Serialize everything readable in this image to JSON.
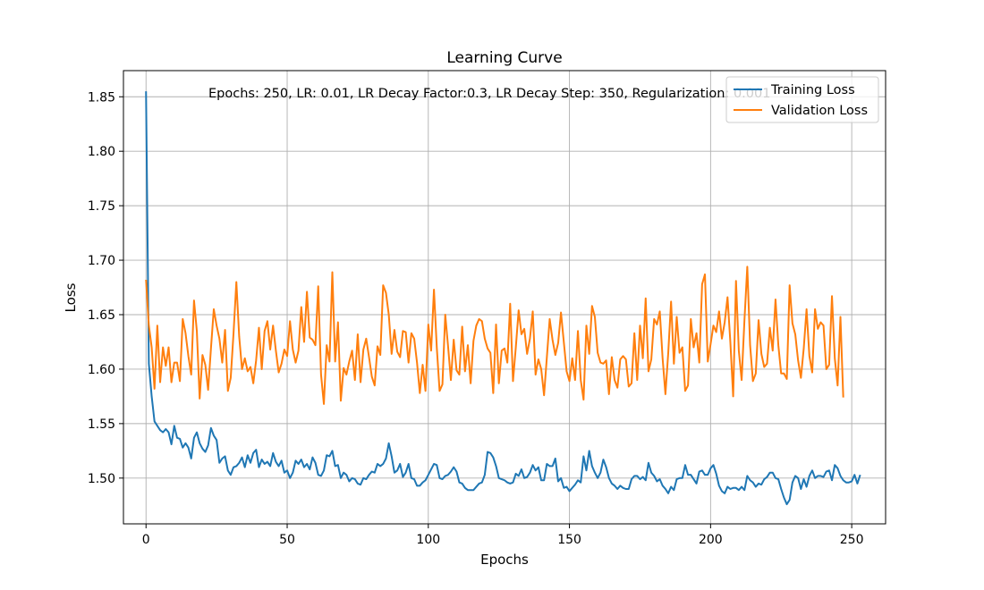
{
  "chart_data": {
    "type": "line",
    "title": "Learning Curve",
    "xlabel": "Epochs",
    "ylabel": "Loss",
    "xlim": [
      -8,
      262
    ],
    "ylim": [
      1.458,
      1.874
    ],
    "xticks": [
      0,
      50,
      100,
      150,
      200,
      250
    ],
    "yticks": [
      1.5,
      1.55,
      1.6,
      1.65,
      1.7,
      1.75,
      1.8,
      1.85
    ],
    "grid": true,
    "legend_position": "top-right",
    "annotation": "Epochs: 250, LR: 0.01, LR Decay Factor:0.3, LR Decay Step: 350, Regularization: 0.001",
    "series": [
      {
        "name": "Training Loss",
        "color": "#1f77b4",
        "values": [
          1.855,
          1.605,
          1.575,
          1.552,
          1.548,
          1.544,
          1.542,
          1.545,
          1.542,
          1.531,
          1.548,
          1.537,
          1.536,
          1.528,
          1.532,
          1.528,
          1.518,
          1.537,
          1.542,
          1.532,
          1.527,
          1.524,
          1.53,
          1.546,
          1.539,
          1.535,
          1.514,
          1.518,
          1.52,
          1.507,
          1.503,
          1.51,
          1.511,
          1.514,
          1.519,
          1.51,
          1.521,
          1.514,
          1.523,
          1.526,
          1.51,
          1.517,
          1.513,
          1.515,
          1.511,
          1.523,
          1.515,
          1.511,
          1.516,
          1.505,
          1.507,
          1.5,
          1.505,
          1.516,
          1.513,
          1.517,
          1.51,
          1.513,
          1.508,
          1.519,
          1.514,
          1.503,
          1.502,
          1.507,
          1.521,
          1.52,
          1.525,
          1.511,
          1.512,
          1.5,
          1.505,
          1.503,
          1.497,
          1.5,
          1.499,
          1.495,
          1.494,
          1.5,
          1.499,
          1.503,
          1.506,
          1.505,
          1.513,
          1.511,
          1.513,
          1.518,
          1.532,
          1.52,
          1.505,
          1.507,
          1.513,
          1.501,
          1.505,
          1.513,
          1.5,
          1.499,
          1.493,
          1.493,
          1.496,
          1.498,
          1.503,
          1.508,
          1.513,
          1.512,
          1.5,
          1.499,
          1.502,
          1.503,
          1.506,
          1.51,
          1.506,
          1.496,
          1.495,
          1.491,
          1.489,
          1.489,
          1.489,
          1.492,
          1.495,
          1.496,
          1.503,
          1.524,
          1.523,
          1.519,
          1.511,
          1.5,
          1.499,
          1.498,
          1.496,
          1.495,
          1.496,
          1.504,
          1.502,
          1.508,
          1.5,
          1.501,
          1.505,
          1.512,
          1.507,
          1.51,
          1.498,
          1.498,
          1.513,
          1.511,
          1.511,
          1.518,
          1.497,
          1.5,
          1.491,
          1.492,
          1.488,
          1.491,
          1.494,
          1.498,
          1.496,
          1.52,
          1.507,
          1.525,
          1.511,
          1.505,
          1.5,
          1.505,
          1.517,
          1.51,
          1.5,
          1.495,
          1.493,
          1.49,
          1.493,
          1.491,
          1.49,
          1.49,
          1.499,
          1.502,
          1.502,
          1.499,
          1.501,
          1.498,
          1.514,
          1.505,
          1.502,
          1.497,
          1.499,
          1.493,
          1.49,
          1.486,
          1.492,
          1.489,
          1.499,
          1.5,
          1.5,
          1.512,
          1.503,
          1.503,
          1.499,
          1.495,
          1.506,
          1.507,
          1.503,
          1.503,
          1.509,
          1.512,
          1.504,
          1.493,
          1.488,
          1.486,
          1.492,
          1.49,
          1.491,
          1.491,
          1.489,
          1.492,
          1.489,
          1.502,
          1.498,
          1.496,
          1.492,
          1.495,
          1.494,
          1.499,
          1.501,
          1.505,
          1.505,
          1.5,
          1.499,
          1.49,
          1.482,
          1.476,
          1.48,
          1.496,
          1.502,
          1.5,
          1.49,
          1.499,
          1.492,
          1.502,
          1.507,
          1.5,
          1.502,
          1.502,
          1.501,
          1.506,
          1.507,
          1.498,
          1.512,
          1.509,
          1.502,
          1.498,
          1.496,
          1.496,
          1.497,
          1.503,
          1.495,
          1.503
        ]
      },
      {
        "name": "Validation Loss",
        "color": "#ff7f0e",
        "values": [
          1.682,
          1.64,
          1.62,
          1.582,
          1.64,
          1.588,
          1.62,
          1.603,
          1.62,
          1.588,
          1.606,
          1.606,
          1.589,
          1.646,
          1.633,
          1.612,
          1.595,
          1.663,
          1.635,
          1.573,
          1.613,
          1.604,
          1.581,
          1.619,
          1.655,
          1.64,
          1.628,
          1.606,
          1.636,
          1.58,
          1.592,
          1.633,
          1.68,
          1.63,
          1.6,
          1.61,
          1.598,
          1.602,
          1.587,
          1.608,
          1.638,
          1.6,
          1.635,
          1.644,
          1.618,
          1.64,
          1.617,
          1.597,
          1.605,
          1.618,
          1.612,
          1.644,
          1.618,
          1.606,
          1.617,
          1.657,
          1.625,
          1.671,
          1.629,
          1.627,
          1.622,
          1.676,
          1.595,
          1.568,
          1.622,
          1.607,
          1.689,
          1.607,
          1.643,
          1.571,
          1.601,
          1.595,
          1.607,
          1.617,
          1.59,
          1.632,
          1.588,
          1.618,
          1.628,
          1.611,
          1.593,
          1.585,
          1.621,
          1.613,
          1.677,
          1.67,
          1.65,
          1.614,
          1.636,
          1.616,
          1.611,
          1.635,
          1.634,
          1.606,
          1.633,
          1.628,
          1.606,
          1.578,
          1.604,
          1.58,
          1.641,
          1.617,
          1.673,
          1.62,
          1.58,
          1.586,
          1.65,
          1.621,
          1.59,
          1.627,
          1.599,
          1.595,
          1.639,
          1.598,
          1.622,
          1.587,
          1.626,
          1.64,
          1.646,
          1.644,
          1.628,
          1.619,
          1.615,
          1.578,
          1.641,
          1.587,
          1.617,
          1.619,
          1.606,
          1.66,
          1.589,
          1.62,
          1.654,
          1.632,
          1.637,
          1.614,
          1.628,
          1.653,
          1.595,
          1.609,
          1.6,
          1.576,
          1.611,
          1.646,
          1.627,
          1.613,
          1.624,
          1.652,
          1.625,
          1.598,
          1.589,
          1.61,
          1.59,
          1.635,
          1.59,
          1.572,
          1.64,
          1.614,
          1.658,
          1.648,
          1.615,
          1.606,
          1.605,
          1.608,
          1.577,
          1.611,
          1.59,
          1.583,
          1.609,
          1.612,
          1.609,
          1.584,
          1.587,
          1.633,
          1.59,
          1.64,
          1.61,
          1.665,
          1.598,
          1.609,
          1.646,
          1.641,
          1.653,
          1.61,
          1.577,
          1.615,
          1.662,
          1.605,
          1.648,
          1.615,
          1.62,
          1.58,
          1.585,
          1.646,
          1.62,
          1.633,
          1.606,
          1.678,
          1.687,
          1.607,
          1.623,
          1.64,
          1.634,
          1.653,
          1.628,
          1.643,
          1.666,
          1.625,
          1.575,
          1.681,
          1.617,
          1.59,
          1.645,
          1.694,
          1.622,
          1.589,
          1.596,
          1.645,
          1.614,
          1.602,
          1.605,
          1.638,
          1.617,
          1.664,
          1.622,
          1.596,
          1.596,
          1.591,
          1.677,
          1.642,
          1.632,
          1.608,
          1.592,
          1.619,
          1.655,
          1.612,
          1.597,
          1.655,
          1.637,
          1.643,
          1.64,
          1.6,
          1.604,
          1.667,
          1.61,
          1.585,
          1.648,
          1.574
        ]
      }
    ]
  }
}
